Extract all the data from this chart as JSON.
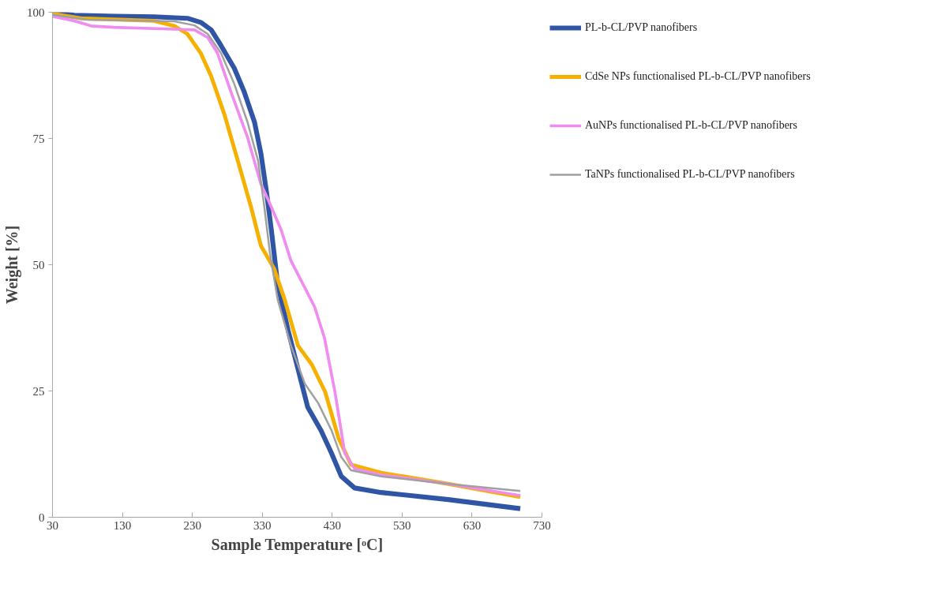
{
  "chart_data": {
    "type": "line",
    "xlabel": "Sample Temperature [ᵒC]",
    "ylabel": "Weight [%]",
    "xlim": [
      30,
      730
    ],
    "xticks": [
      30,
      130,
      230,
      330,
      430,
      530,
      630,
      730
    ],
    "ylim": [
      0,
      100
    ],
    "yticks": [
      0,
      25,
      50,
      75,
      100
    ],
    "grid": false,
    "legend": "right",
    "marker": "none",
    "line_style": "solid",
    "series": [
      {
        "name": "PL-b-CL/PVP nanofibers",
        "color": "#2f55a4",
        "x": [
          30,
          61,
          118,
          175,
          223,
          242,
          257,
          271,
          290,
          304,
          319,
          328,
          336,
          343,
          352,
          367,
          381,
          395,
          414,
          429,
          443,
          462,
          500,
          596,
          699
        ],
        "values": [
          100,
          99.4,
          99.2,
          99.1,
          98.8,
          98,
          96.5,
          93.4,
          88.9,
          84.3,
          78.2,
          72.1,
          64.5,
          56.9,
          46.2,
          37,
          29.4,
          21.8,
          17.2,
          12.7,
          8.1,
          5.8,
          4.9,
          3.5,
          1.7
        ]
      },
      {
        "name": "CdSe NPs functionalised PL-b-CL/PVP nanofibers",
        "color": "#f5b000",
        "x": [
          30,
          70,
          175,
          204,
          223,
          242,
          257,
          276,
          295,
          314,
          328,
          347,
          362,
          381,
          401,
          420,
          439,
          457,
          500,
          596,
          699
        ],
        "values": [
          99.7,
          98.8,
          98.3,
          97.3,
          95.7,
          91.9,
          87.3,
          79.7,
          70.6,
          61.4,
          53.8,
          49.2,
          43.1,
          34,
          30.2,
          24.8,
          15.7,
          10.4,
          8.8,
          6.6,
          4.0
        ]
      },
      {
        "name": "AuNPs functionalised PL-b-CL/PVP nanofibers",
        "color": "#f08cf0",
        "x": [
          30,
          61,
          85,
          118,
          214,
          233,
          252,
          266,
          285,
          309,
          328,
          339,
          357,
          371,
          391,
          405,
          419,
          434,
          448,
          462,
          500,
          596,
          699
        ],
        "values": [
          99.2,
          98.3,
          97.3,
          97,
          96.6,
          96.5,
          95,
          91.9,
          84.3,
          75.2,
          66,
          62.7,
          56.9,
          50.8,
          45.4,
          41.6,
          35.5,
          24.8,
          12.7,
          9.6,
          8.4,
          6.6,
          4.3
        ]
      },
      {
        "name": "TaNPs functionalised PL-b-CL/PVP nanofibers",
        "color": "#a0a0a0",
        "x": [
          30,
          80,
          204,
          233,
          252,
          271,
          290,
          309,
          324,
          333,
          341,
          352,
          371,
          391,
          410,
          429,
          443,
          457,
          500,
          596,
          699
        ],
        "values": [
          99.5,
          98.5,
          98.2,
          97.4,
          95.7,
          91.9,
          85.8,
          78.2,
          70.6,
          61.4,
          52.3,
          43.1,
          34,
          26.4,
          22.6,
          17.2,
          11.9,
          9.3,
          8.1,
          6.6,
          5.2
        ]
      }
    ]
  }
}
